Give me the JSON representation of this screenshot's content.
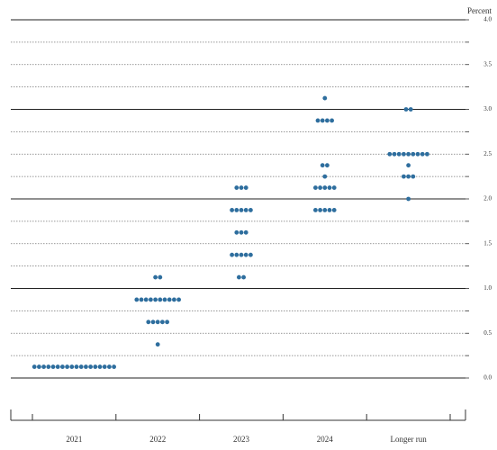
{
  "chart_data": {
    "type": "dot",
    "y_label": "Percent",
    "categories": [
      "2021",
      "2022",
      "2023",
      "2024",
      "Longer run"
    ],
    "dots": [
      [
        0.125,
        0.125,
        0.125,
        0.125,
        0.125,
        0.125,
        0.125,
        0.125,
        0.125,
        0.125,
        0.125,
        0.125,
        0.125,
        0.125,
        0.125,
        0.125,
        0.125,
        0.125
      ],
      [
        1.125,
        1.125,
        0.875,
        0.875,
        0.875,
        0.875,
        0.875,
        0.875,
        0.875,
        0.875,
        0.875,
        0.875,
        0.625,
        0.625,
        0.625,
        0.625,
        0.625,
        0.375
      ],
      [
        2.125,
        2.125,
        2.125,
        1.875,
        1.875,
        1.875,
        1.875,
        1.875,
        1.625,
        1.625,
        1.625,
        1.375,
        1.375,
        1.375,
        1.375,
        1.375,
        1.125,
        1.125
      ],
      [
        3.125,
        2.875,
        2.875,
        2.875,
        2.875,
        2.375,
        2.375,
        2.25,
        2.125,
        2.125,
        2.125,
        2.125,
        2.125,
        1.875,
        1.875,
        1.875,
        1.875,
        1.875
      ],
      [
        3.0,
        3.0,
        2.5,
        2.5,
        2.5,
        2.5,
        2.5,
        2.5,
        2.5,
        2.5,
        2.5,
        2.375,
        2.25,
        2.25,
        2.25,
        2.0
      ]
    ],
    "color": "#2e6e9e",
    "ylim": [
      0,
      4
    ],
    "yticks": [
      {
        "value": 0,
        "label": "0.0"
      },
      {
        "value": 0.5,
        "label": "0.5"
      },
      {
        "value": 1,
        "label": "1.0"
      },
      {
        "value": 1.5,
        "label": "1.5"
      },
      {
        "value": 2,
        "label": "2.0"
      },
      {
        "value": 2.5,
        "label": "2.5"
      },
      {
        "value": 3,
        "label": "3.0"
      },
      {
        "value": 3.5,
        "label": "3.5"
      },
      {
        "value": 4,
        "label": "4.0"
      }
    ],
    "minor_gridlines": [
      0.25,
      0.75,
      1.25,
      1.75,
      2.25,
      2.75,
      3.25,
      3.75
    ],
    "grid": true
  }
}
